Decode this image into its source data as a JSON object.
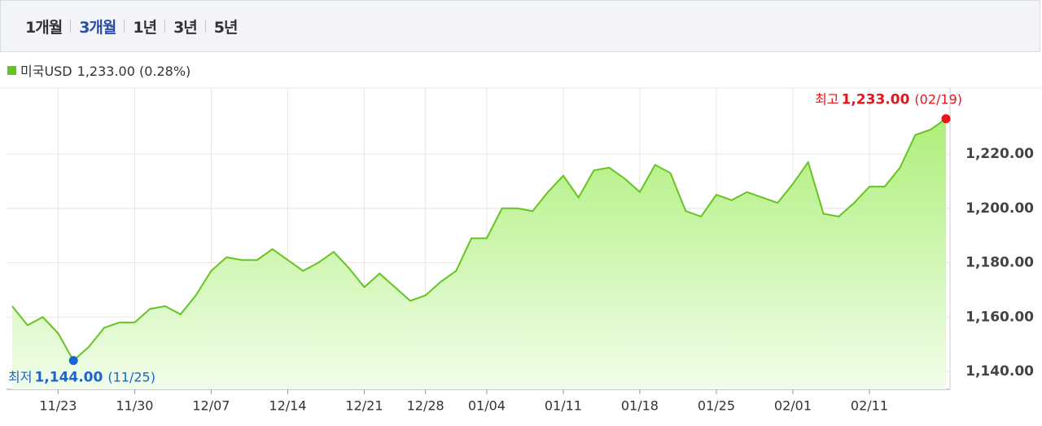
{
  "tabs": [
    {
      "label": "1개월"
    },
    {
      "label": "3개월",
      "selected": true
    },
    {
      "label": "1년"
    },
    {
      "label": "3년"
    },
    {
      "label": "5년"
    }
  ],
  "chart_data": {
    "type": "area",
    "legend_text": "1,233.00 (0.28%)",
    "categories": [
      null,
      null,
      null,
      "11/23",
      null,
      null,
      null,
      null,
      "11/30",
      null,
      null,
      null,
      null,
      "12/07",
      null,
      null,
      null,
      null,
      "12/14",
      null,
      null,
      null,
      null,
      "12/21",
      null,
      null,
      null,
      "12/28",
      null,
      null,
      null,
      "01/04",
      null,
      null,
      null,
      null,
      "01/11",
      null,
      null,
      null,
      null,
      "01/18",
      null,
      null,
      null,
      null,
      "01/25",
      null,
      null,
      null,
      null,
      "02/01",
      null,
      null,
      null,
      null,
      "02/11",
      null,
      null,
      null,
      null,
      null
    ],
    "series": [
      {
        "name": "미국USD",
        "color": "#66c421",
        "values": [
          1164,
          1157,
          1160,
          1154,
          1144,
          1149,
          1156,
          1158,
          1158,
          1163,
          1164,
          1161,
          1168,
          1177,
          1182,
          1181,
          1181,
          1185,
          1181,
          1177,
          1180,
          1184,
          1178,
          1171,
          1176,
          1171,
          1166,
          1168,
          1173,
          1177,
          1189,
          1189,
          1200,
          1200,
          1199,
          1206,
          1212,
          1204,
          1214,
          1215,
          1211,
          1206,
          1216,
          1213,
          1199,
          1197,
          1205,
          1203,
          1206,
          1204,
          1202,
          1209,
          1217,
          1198,
          1197,
          1202,
          1208,
          1208,
          1215,
          1227,
          1229,
          1233
        ]
      }
    ],
    "ylim": [
      1133.4,
      1244.3
    ],
    "yticks": [
      {
        "value": 1140,
        "label": "1,140.00"
      },
      {
        "value": 1160,
        "label": "1,160.00"
      },
      {
        "value": 1180,
        "label": "1,180.00"
      },
      {
        "value": 1200,
        "label": "1,200.00"
      },
      {
        "value": 1220,
        "label": "1,220.00"
      }
    ],
    "grid": true,
    "annotations": {
      "high": {
        "prefix": "최고",
        "value": 1233,
        "label": "1,233.00",
        "date": "(02/19)",
        "color": "#e8141c"
      },
      "low": {
        "prefix": "최저",
        "value": 1144,
        "label": "1,144.00",
        "date": "(11/25)",
        "color": "#1a64d0"
      }
    }
  }
}
